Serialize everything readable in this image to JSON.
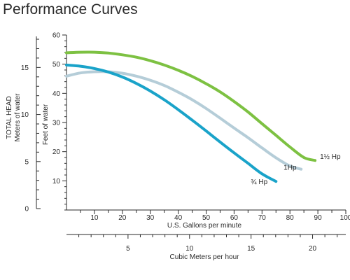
{
  "chart_data": {
    "type": "line",
    "title": "Performance Curves",
    "x_axis": {
      "label": "U.S. Gallons per minute",
      "range": [
        0,
        100
      ],
      "ticks": [
        10,
        20,
        30,
        40,
        50,
        60,
        70,
        80,
        90,
        100
      ]
    },
    "x2_axis": {
      "label": "Cubic Meters per hour",
      "range": [
        0,
        22.7
      ],
      "ticks": [
        5,
        10,
        15,
        20
      ]
    },
    "y_axis": {
      "label": "Feet of water",
      "range": [
        0,
        60
      ],
      "ticks": [
        10,
        20,
        30,
        40,
        50,
        60
      ]
    },
    "y2_axis": {
      "label_lines": [
        "TOTAL HEAD",
        "Meters of water"
      ],
      "range": [
        0,
        18.3
      ],
      "ticks": [
        0,
        5,
        10,
        15
      ]
    },
    "grid": false,
    "series": [
      {
        "name": "1½ Hp",
        "color": "#7dc142",
        "x": [
          0,
          5,
          10,
          15,
          20,
          25,
          30,
          35,
          40,
          45,
          50,
          55,
          60,
          65,
          70,
          75,
          80,
          85,
          89
        ],
        "y": [
          53.9,
          54.1,
          54.1,
          53.8,
          53.2,
          52.4,
          51.2,
          49.7,
          47.9,
          45.8,
          43.3,
          40.5,
          37.2,
          33.6,
          29.6,
          25.6,
          21.6,
          18.0,
          17.0
        ]
      },
      {
        "name": "1Hp",
        "color": "#b5cdd8",
        "x": [
          0,
          5,
          10,
          15,
          20,
          25,
          30,
          35,
          40,
          45,
          50,
          55,
          60,
          65,
          70,
          75,
          80,
          84
        ],
        "y": [
          45.9,
          47.0,
          47.4,
          47.4,
          46.9,
          45.9,
          44.5,
          42.7,
          40.4,
          37.8,
          34.8,
          31.5,
          28.1,
          24.8,
          21.3,
          17.9,
          15.1,
          14.0
        ]
      },
      {
        "name": "¾ Hp",
        "color": "#1aa3c9",
        "x": [
          0,
          5,
          10,
          15,
          20,
          25,
          30,
          35,
          40,
          45,
          50,
          55,
          60,
          65,
          70,
          75
        ],
        "y": [
          49.7,
          49.3,
          48.5,
          47.3,
          45.6,
          43.4,
          40.8,
          37.8,
          34.4,
          30.8,
          27.1,
          23.3,
          19.6,
          16.0,
          12.4,
          9.8
        ]
      }
    ]
  }
}
